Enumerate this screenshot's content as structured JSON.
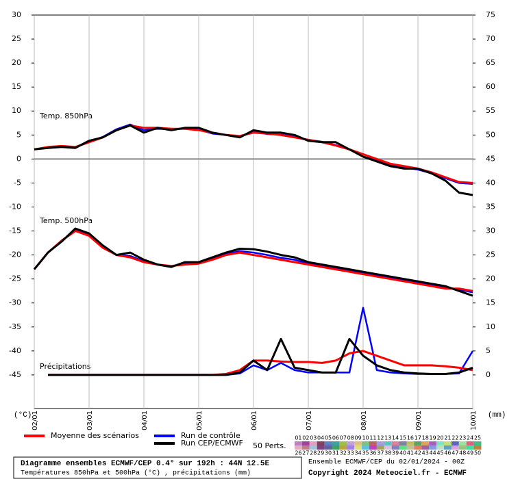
{
  "chart_data": {
    "type": "line",
    "xlim": [
      0,
      192
    ],
    "xticks": [
      {
        "value": 0,
        "label": "02/01"
      },
      {
        "value": 24,
        "label": "03/01"
      },
      {
        "value": 48,
        "label": "04/01"
      },
      {
        "value": 72,
        "label": "05/01"
      },
      {
        "value": 96,
        "label": "06/01"
      },
      {
        "value": 120,
        "label": "07/01"
      },
      {
        "value": 144,
        "label": "08/01"
      },
      {
        "value": 168,
        "label": "09/01"
      },
      {
        "value": 192,
        "label": "10/01"
      }
    ],
    "x": [
      0,
      6,
      12,
      18,
      24,
      30,
      36,
      42,
      48,
      54,
      60,
      66,
      72,
      78,
      84,
      90,
      96,
      102,
      108,
      114,
      120,
      126,
      132,
      138,
      144,
      150,
      156,
      162,
      168,
      174,
      180,
      186,
      192
    ],
    "ylim": [
      -52,
      30
    ],
    "yticks": [
      30,
      25,
      20,
      15,
      10,
      5,
      0,
      -5,
      -10,
      -15,
      -20,
      -25,
      -30,
      -35,
      -40,
      -45
    ],
    "y2lim": [
      -7,
      75
    ],
    "y2ticks": [
      75,
      70,
      65,
      60,
      55,
      50,
      45,
      40,
      35,
      30,
      25,
      20,
      15,
      10,
      5,
      0
    ],
    "ylabel": "(°C)",
    "y2label": "(mm)",
    "grid": true,
    "panel_labels": {
      "t850": "Temp. 850hPa",
      "t500": "Temp. 500hPa",
      "precip": "Précipitations"
    },
    "series": [
      {
        "name": "Run de contrôle",
        "color": "#0000ff",
        "t850": [
          2,
          2.5,
          2.6,
          2.4,
          3.6,
          4.6,
          6.2,
          7.2,
          6,
          6.3,
          6.2,
          6.4,
          6.1,
          5.3,
          5,
          4.6,
          5.7,
          5.2,
          5.1,
          4.6,
          4,
          3.6,
          2.9,
          2,
          1,
          -0.2,
          -1.2,
          -1.8,
          -2.2,
          -3,
          -4,
          -5,
          -5.2
        ],
        "t500": [
          -23,
          -19.5,
          -17,
          -14.8,
          -15.8,
          -18.3,
          -20,
          -20.2,
          -21.3,
          -22,
          -22.4,
          -21.8,
          -21.7,
          -20.8,
          -19.8,
          -19.2,
          -19.5,
          -20,
          -20.6,
          -21,
          -21.8,
          -22.3,
          -22.8,
          -23.3,
          -23.8,
          -24.3,
          -24.8,
          -25.3,
          -25.8,
          -26.3,
          -26.8,
          -27.2,
          -27.8
        ],
        "precip": [
          null,
          0,
          0,
          0,
          0,
          0,
          0,
          0,
          0,
          0,
          0,
          0,
          0,
          0,
          0,
          0.3,
          2,
          1,
          2.5,
          1,
          0.5,
          0.5,
          0.5,
          0.5,
          14,
          1,
          0.5,
          0.3,
          0.2,
          0.2,
          0.2,
          0.3,
          5
        ]
      },
      {
        "name": "Moyenne des scénarios",
        "color": "#ff0000",
        "t850": [
          2,
          2.5,
          2.7,
          2.5,
          3.5,
          4.5,
          6,
          7,
          6.5,
          6.5,
          6.3,
          6.3,
          6,
          5.5,
          5,
          4.8,
          5.5,
          5.3,
          5,
          4.5,
          4,
          3.5,
          2.8,
          2,
          1,
          0,
          -1,
          -1.5,
          -2,
          -2.8,
          -3.8,
          -4.8,
          -5
        ],
        "t500": [
          -23,
          -19.5,
          -17,
          -15,
          -16,
          -18.5,
          -20,
          -20.5,
          -21.5,
          -22,
          -22.3,
          -22,
          -21.8,
          -21,
          -20,
          -19.5,
          -20,
          -20.5,
          -21,
          -21.5,
          -22,
          -22.5,
          -23,
          -23.5,
          -24,
          -24.5,
          -25,
          -25.5,
          -26,
          -26.5,
          -27,
          -27,
          -27.5
        ],
        "precip": [
          null,
          0,
          0,
          0,
          0,
          0,
          0,
          0,
          0,
          0,
          0,
          0,
          0,
          0,
          0.2,
          1,
          3,
          3,
          2.8,
          2.7,
          2.7,
          2.5,
          3,
          4.5,
          5,
          4,
          3,
          2,
          2,
          2,
          1.8,
          1.5,
          1
        ]
      },
      {
        "name": "Run CEP/ECMWF",
        "color": "#000000",
        "t850": [
          2,
          2.3,
          2.5,
          2.3,
          3.8,
          4.5,
          6,
          7,
          5.5,
          6.5,
          6,
          6.5,
          6.5,
          5.5,
          5,
          4.5,
          6,
          5.5,
          5.5,
          5,
          3.8,
          3.5,
          3.5,
          2,
          0.5,
          -0.5,
          -1.5,
          -2,
          -2,
          -3,
          -4.5,
          -7,
          -7.5
        ],
        "t500": [
          -23,
          -19.5,
          -17.2,
          -14.5,
          -15.5,
          -18,
          -20,
          -19.5,
          -21,
          -22,
          -22.5,
          -21.5,
          -21.5,
          -20.5,
          -19.5,
          -18.7,
          -18.8,
          -19.3,
          -20,
          -20.5,
          -21.5,
          -22,
          -22.5,
          -23,
          -23.5,
          -24,
          -24.5,
          -25,
          -25.5,
          -26,
          -26.5,
          -27.5,
          -28.5
        ],
        "precip": [
          null,
          0,
          0,
          0,
          0,
          0,
          0,
          0,
          0,
          0,
          0,
          0,
          0,
          0,
          0,
          0.5,
          3,
          1,
          7.5,
          1.5,
          1,
          0.5,
          0.5,
          7.5,
          4,
          2,
          1,
          0.5,
          0.3,
          0.2,
          0.2,
          0.5,
          1.5
        ]
      }
    ],
    "perturbations": {
      "title": "50 Perts.",
      "labels": [
        "01",
        "02",
        "03",
        "04",
        "05",
        "06",
        "07",
        "08",
        "09",
        "10",
        "11",
        "12",
        "13",
        "14",
        "15",
        "16",
        "17",
        "18",
        "19",
        "20",
        "21",
        "22",
        "23",
        "24",
        "25",
        "26",
        "27",
        "28",
        "29",
        "30",
        "31",
        "32",
        "33",
        "34",
        "35",
        "36",
        "37",
        "38",
        "39",
        "40",
        "41",
        "42",
        "43",
        "44",
        "45",
        "46",
        "47",
        "48",
        "49",
        "50"
      ],
      "colors": [
        "#c080c0",
        "#a040a0",
        "#e0a0c0",
        "#804060",
        "#6080c0",
        "#40a0a0",
        "#a0c040",
        "#c0a0e0",
        "#e0c080",
        "#80c080",
        "#c06060",
        "#a0a0e0",
        "#60c0c0",
        "#e080a0",
        "#8080a0",
        "#c0c060",
        "#60a060",
        "#e0a060",
        "#a060c0",
        "#80e0c0",
        "#c0e080",
        "#6060c0",
        "#a0e0a0",
        "#e06080",
        "#40c080",
        "#e0b0c0",
        "#c08080",
        "#a0c0e0",
        "#804080",
        "#6060a0",
        "#40a060",
        "#c0a040",
        "#a080e0",
        "#e0e080",
        "#60c0e0",
        "#c040c0",
        "#a0a060",
        "#e0c0e0",
        "#8080c0",
        "#60e080",
        "#c0c0a0",
        "#e08060",
        "#a060a0",
        "#80a0e0",
        "#c0e0c0",
        "#60a0c0",
        "#e0a0e0",
        "#a0c080",
        "#40e0a0",
        "#c08040"
      ]
    },
    "footer": {
      "ensemble": "Ensemble ECMWF/CEP du 02/01/2024 - 00Z",
      "copyright": "Copyright 2024 Meteociel.fr - ECMWF",
      "box_title": "Diagramme ensembles ECMWF/CEP 0.4° sur 192h : 44N 12.5E",
      "box_subtitle": "Températures 850hPa et 500hPa (°C) , précipitations (mm)"
    }
  }
}
